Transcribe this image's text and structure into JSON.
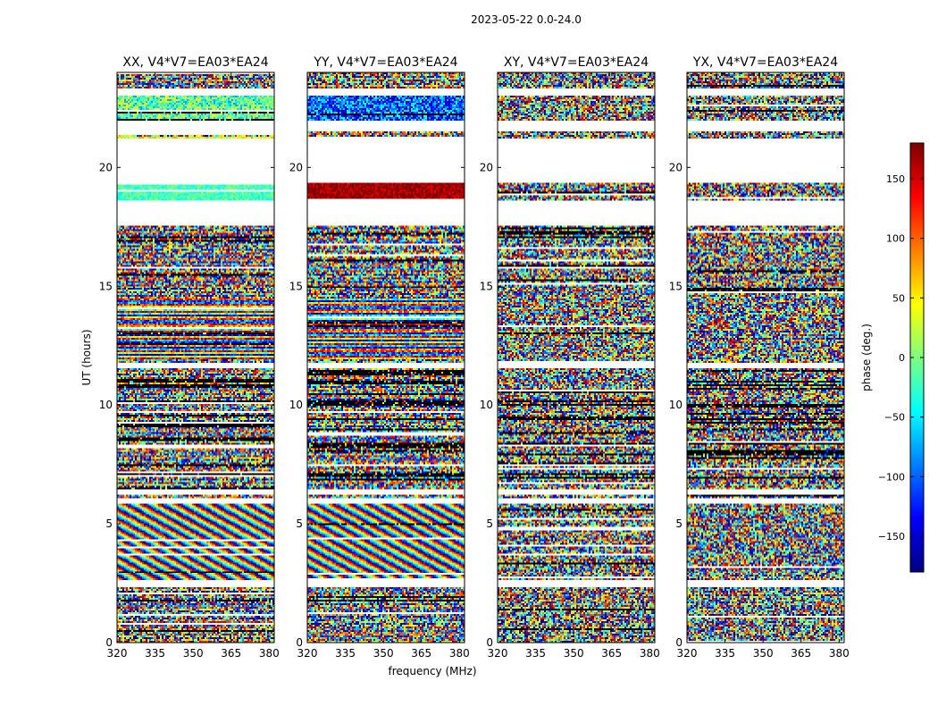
{
  "figure": {
    "suptitle": "2023-05-22 0.0-24.0",
    "colorbar_label": "phase (deg.)",
    "colormap": [
      "#00007f",
      "#0000ff",
      "#007fff",
      "#00ffff",
      "#7fff7f",
      "#ffff00",
      "#ff7f00",
      "#ff0000",
      "#7f0000"
    ]
  },
  "chart_data": [
    {
      "type": "heatmap",
      "title": "XX, V4*V7=EA03*EA24",
      "xlabel": "",
      "ylabel": "UT (hours)",
      "xlim": [
        320,
        382
      ],
      "ylim": [
        0,
        24
      ],
      "x_ticks": [
        320,
        335,
        350,
        365,
        380
      ],
      "y_ticks": [
        0,
        5,
        10,
        15,
        20
      ],
      "value_range": [
        -180,
        180
      ],
      "pattern": "XX"
    },
    {
      "type": "heatmap",
      "title": "YY, V4*V7=EA03*EA24",
      "xlabel": "frequency (MHz)",
      "ylabel": "",
      "xlim": [
        320,
        382
      ],
      "ylim": [
        0,
        24
      ],
      "x_ticks": [
        320,
        335,
        350,
        365,
        380
      ],
      "y_ticks": [
        0,
        5,
        10,
        15,
        20
      ],
      "value_range": [
        -180,
        180
      ],
      "pattern": "YY"
    },
    {
      "type": "heatmap",
      "title": "XY, V4*V7=EA03*EA24",
      "xlabel": "",
      "ylabel": "",
      "xlim": [
        320,
        382
      ],
      "ylim": [
        0,
        24
      ],
      "x_ticks": [
        320,
        335,
        350,
        365,
        380
      ],
      "y_ticks": [
        0,
        5,
        10,
        15,
        20
      ],
      "value_range": [
        -180,
        180
      ],
      "pattern": "XY"
    },
    {
      "type": "heatmap",
      "title": "YX, V4*V7=EA03*EA24",
      "xlabel": "",
      "ylabel": "",
      "xlim": [
        320,
        382
      ],
      "ylim": [
        0,
        24
      ],
      "x_ticks": [
        320,
        335,
        350,
        365,
        380
      ],
      "y_ticks": [
        0,
        5,
        10,
        15,
        20
      ],
      "value_range": [
        -180,
        180
      ],
      "pattern": "YX"
    }
  ],
  "colorbar": {
    "range": [
      -180,
      180
    ],
    "ticks": [
      -150,
      -100,
      -50,
      0,
      50,
      100,
      150
    ]
  },
  "data_gaps_hours": [
    [
      2.35,
      2.6
    ],
    [
      5.85,
      6.05
    ],
    [
      6.25,
      6.45
    ],
    [
      11.55,
      11.75
    ],
    [
      17.55,
      18.6
    ],
    [
      19.35,
      21.2
    ],
    [
      21.55,
      21.95
    ],
    [
      23.05,
      23.3
    ]
  ]
}
